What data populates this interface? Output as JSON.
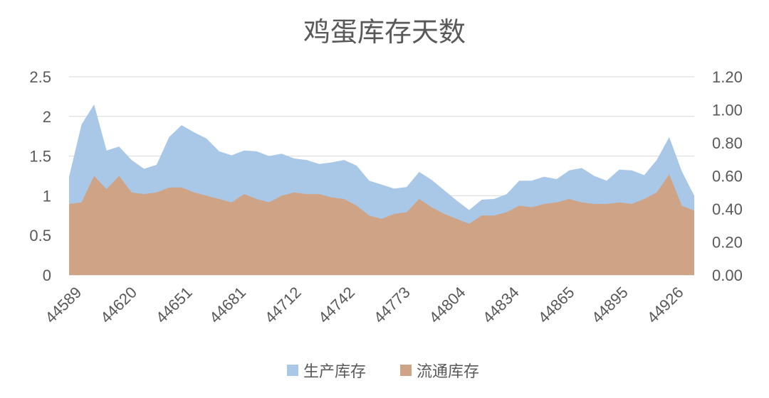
{
  "chart_data": {
    "type": "area",
    "title": "鸡蛋库存天数",
    "xlabel": "",
    "ylabel": "",
    "x": [
      44589,
      44596,
      44603,
      44610,
      44617,
      44624,
      44631,
      44638,
      44645,
      44652,
      44659,
      44666,
      44673,
      44680,
      44687,
      44694,
      44701,
      44708,
      44715,
      44722,
      44729,
      44736,
      44743,
      44750,
      44757,
      44764,
      44771,
      44778,
      44785,
      44792,
      44799,
      44806,
      44813,
      44820,
      44827,
      44834,
      44841,
      44848,
      44855,
      44862,
      44869,
      44876,
      44883,
      44890,
      44897,
      44904,
      44911,
      44918,
      44925,
      44932,
      44939
    ],
    "x_ticks": [
      44589,
      44620,
      44651,
      44681,
      44712,
      44742,
      44773,
      44804,
      44834,
      44865,
      44895,
      44926
    ],
    "x_tick_labels": [
      "44589",
      "44620",
      "44651",
      "44681",
      "44712",
      "44742",
      "44773",
      "44804",
      "44834",
      "44865",
      "44895",
      "44926"
    ],
    "ylim_left": [
      0,
      2.5
    ],
    "yticks_left": [
      "0",
      "0.5",
      "1",
      "1.5",
      "2",
      "2.5"
    ],
    "ylim_right": [
      0,
      1.2
    ],
    "yticks_right": [
      "0.00",
      "0.20",
      "0.40",
      "0.60",
      "0.80",
      "1.00",
      "1.20"
    ],
    "grid": true,
    "legend_position": "bottom",
    "series": [
      {
        "name": "生产库存",
        "axis": "left",
        "color": "#a9c8e8",
        "values": [
          1.24,
          1.9,
          2.15,
          1.57,
          1.62,
          1.45,
          1.34,
          1.39,
          1.74,
          1.89,
          1.8,
          1.72,
          1.56,
          1.51,
          1.57,
          1.56,
          1.5,
          1.53,
          1.47,
          1.45,
          1.4,
          1.42,
          1.45,
          1.38,
          1.19,
          1.14,
          1.09,
          1.11,
          1.3,
          1.2,
          1.07,
          0.94,
          0.82,
          0.95,
          0.96,
          1.02,
          1.19,
          1.19,
          1.24,
          1.21,
          1.32,
          1.35,
          1.25,
          1.19,
          1.33,
          1.32,
          1.26,
          1.45,
          1.74,
          1.31,
          1.0
        ]
      },
      {
        "name": "流通库存",
        "axis": "right",
        "color": "#cfa385",
        "values": [
          0.43,
          0.44,
          0.6,
          0.52,
          0.6,
          0.5,
          0.49,
          0.5,
          0.53,
          0.53,
          0.5,
          0.48,
          0.46,
          0.44,
          0.49,
          0.46,
          0.44,
          0.48,
          0.5,
          0.49,
          0.49,
          0.47,
          0.46,
          0.42,
          0.36,
          0.34,
          0.37,
          0.38,
          0.46,
          0.41,
          0.37,
          0.34,
          0.31,
          0.36,
          0.36,
          0.38,
          0.42,
          0.41,
          0.43,
          0.44,
          0.46,
          0.44,
          0.43,
          0.43,
          0.44,
          0.43,
          0.46,
          0.5,
          0.61,
          0.42,
          0.39
        ]
      }
    ]
  }
}
